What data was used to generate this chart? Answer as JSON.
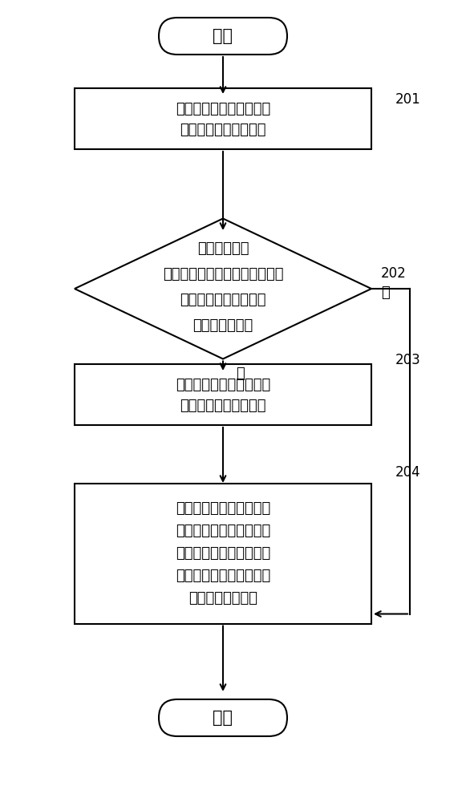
{
  "bg_color": "#ffffff",
  "line_color": "#000000",
  "text_color": "#000000",
  "start_text": "开始",
  "end_text": "结束",
  "box1_line1": "检测电子俣获检测器中电",
  "box1_line2": "压脉冲的当前基本频率",
  "diamond_line1": "判断检测到的",
  "diamond_line2": "当前基本频率是否超出电压脉冲",
  "diamond_line3": "的预定基本频率范围，",
  "diamond_line4": "并输出判断结果",
  "box3_line1": "生成调节电子俣获检测器",
  "box3_line2": "的目标电流的调节指令",
  "box4_line1": "根据调节指令来调节目标",
  "box4_line2": "电流的大小，以供电子俣",
  "box4_line3": "获检测器根据被调节后的",
  "box4_line4": "目标电流的大小来调节电",
  "box4_line5": "压脉冲的基本频率",
  "yes_label": "是",
  "no_label": "否",
  "label_201": "201",
  "label_202": "202",
  "label_203": "203",
  "label_204": "204"
}
